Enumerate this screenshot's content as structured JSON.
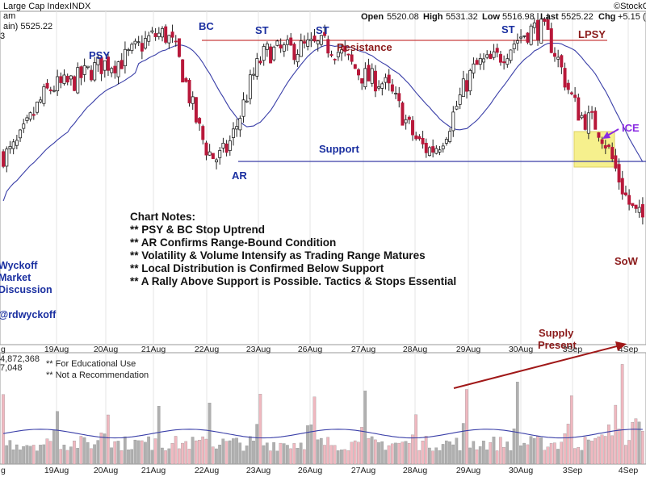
{
  "header": {
    "title": "Large Cap Index",
    "exchange": "INDX",
    "watermark": "©StockC",
    "open_label": "Open",
    "open": "5520.08",
    "high_label": "High",
    "high": "5531.32",
    "low_label": "Low",
    "low": "5516.98",
    "last_label": "Last",
    "last": "5525.22",
    "chg_label": "Chg",
    "chg": "+5.15 (",
    "line1": "ain) 5525.22",
    "line2": "am",
    "line3": "3"
  },
  "annotations": {
    "psy": "PSY",
    "bc": "BC",
    "st1": "ST",
    "st2": "ST",
    "st3": "ST",
    "resistance": "Resistance",
    "support": "Support",
    "ar": "AR",
    "lpsy": "LPSY",
    "ice": "ICE",
    "sow": "SoW",
    "supply1": "Supply",
    "supply2": "Present"
  },
  "notes": {
    "title": "Chart Notes:",
    "lines": [
      "** PSY & BC Stop Uptrend",
      "** AR Confirms Range-Bound Condition",
      "** Volatility & Volume Intensify as Trading Range Matures",
      "** Local Distribution is Confirmed Below Support",
      "** A Rally Above Support is Possible. Tactics & Stops Essential"
    ]
  },
  "sidebar": {
    "lines": [
      "Wyckoff",
      "Market",
      "Discussion"
    ],
    "handle": "@rdwyckoff"
  },
  "volume_panel": {
    "value1": "4,872,368",
    "value2": "7,048",
    "disclaimer1": "** For Educational Use",
    "disclaimer2": "** Not a Recommendation"
  },
  "colors": {
    "up": "#ffffff",
    "down": "#b8183a",
    "ma": "#3a3fa8",
    "resistance": "#c94040",
    "support": "#3a3fa8",
    "ice_box": "#f5ee7a",
    "vol_up": "#b0b0b0",
    "vol_down": "#f0b8c0",
    "arrow": "#a01818"
  },
  "chart_data": {
    "type": "candlestick",
    "title": "Large Cap Index",
    "x_tick_labels": [
      "19Aug",
      "20Aug",
      "21Aug",
      "22Aug",
      "23Aug",
      "26Aug",
      "27Aug",
      "28Aug",
      "29Aug",
      "30Aug",
      "3Sep",
      "4Sep"
    ],
    "y_range": [
      5100,
      5680
    ],
    "resistance_level": 5650,
    "support_level": 5385,
    "session_closes": [
      5430,
      5550,
      5590,
      5640,
      5425,
      5610,
      5620,
      5560,
      5440,
      5590,
      5650,
      5490,
      5320
    ],
    "volume_range": [
      0,
      100
    ]
  }
}
